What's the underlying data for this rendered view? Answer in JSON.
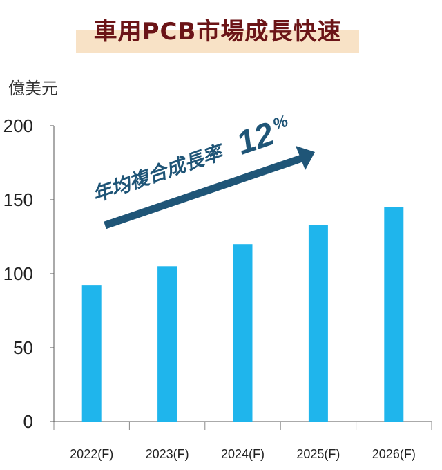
{
  "title": "車用PCB市場成長快速",
  "chart_data": {
    "type": "bar",
    "title": "車用PCB市場成長快速",
    "ylabel": "億美元",
    "xlabel": "",
    "categories": [
      "2022(F)",
      "2023(F)",
      "2024(F)",
      "2025(F)",
      "2026(F)"
    ],
    "values": [
      92,
      105,
      120,
      133,
      145
    ],
    "ylim": [
      0,
      200
    ],
    "yticks": [
      0,
      50,
      100,
      150,
      200
    ],
    "bar_color": "#1fb5ec",
    "grid": false,
    "annotation": {
      "text": "年均複合成長率",
      "rate": "12",
      "unit": "%",
      "color": "#1f5577"
    }
  }
}
